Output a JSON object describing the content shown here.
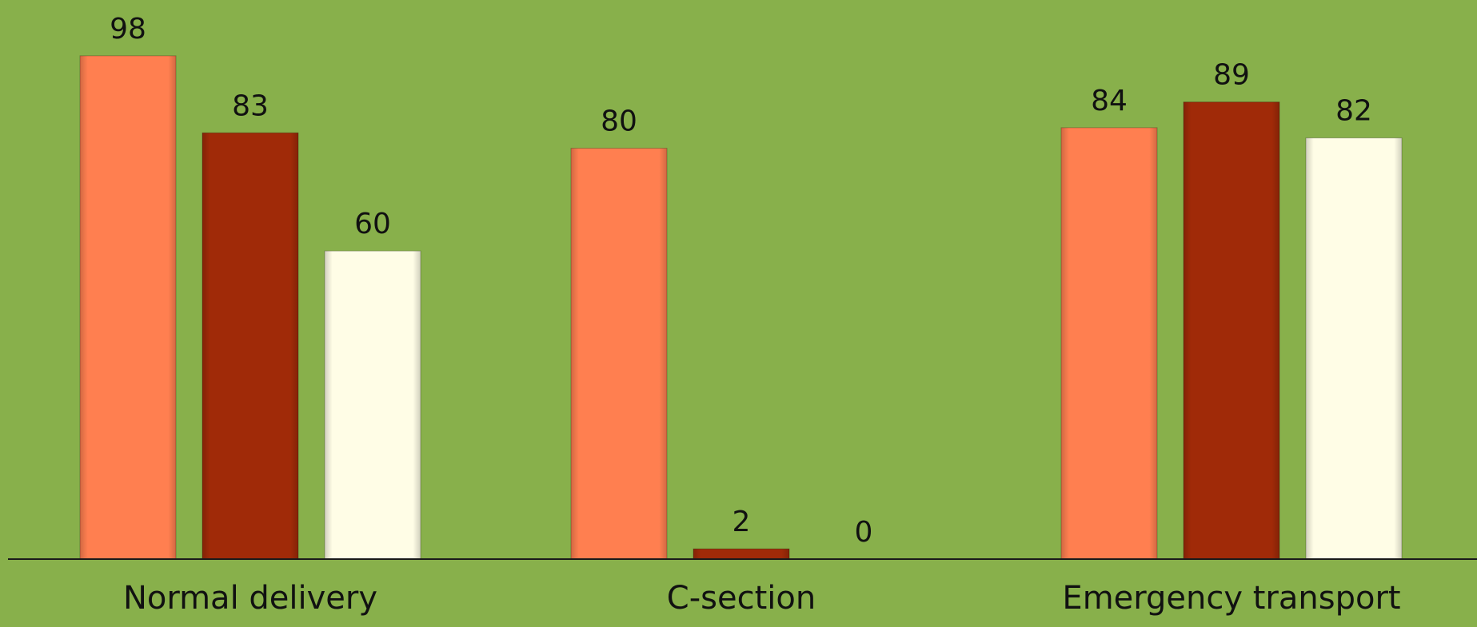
{
  "chart_data": {
    "type": "bar",
    "categories": [
      "Normal delivery",
      "C-section",
      "Emergency transport"
    ],
    "series": [
      {
        "values": [
          98,
          80,
          84
        ],
        "color": "#ff7f50"
      },
      {
        "values": [
          83,
          2,
          89
        ],
        "color": "#a02a08"
      },
      {
        "values": [
          60,
          0,
          82
        ],
        "color": "#fffde6"
      }
    ],
    "title": "",
    "xlabel": "",
    "ylabel": "",
    "ylim": [
      0,
      100
    ],
    "grid": false,
    "legend": "none"
  },
  "colors": {
    "background": "#88b04b",
    "axis": "#1a1a1a"
  }
}
